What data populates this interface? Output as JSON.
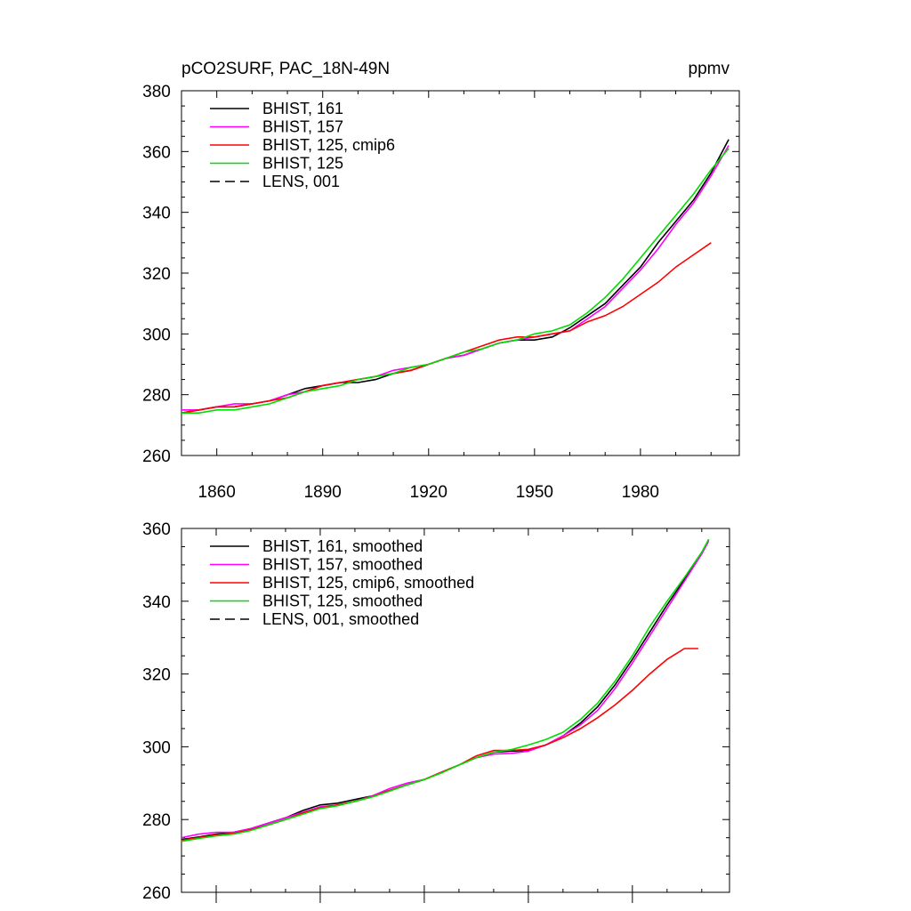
{
  "chart_data": [
    {
      "type": "line",
      "title_left": "pCO2SURF, PAC_18N-49N",
      "title_right": "ppmv",
      "xlabel": "",
      "ylabel": "",
      "xlim": [
        1850,
        2008
      ],
      "ylim": [
        260,
        380
      ],
      "xticks": [
        1860,
        1890,
        1920,
        1950,
        1980
      ],
      "yticks": [
        260,
        280,
        300,
        320,
        340,
        360,
        380
      ],
      "grid": false,
      "legend_position": "top-left",
      "series": [
        {
          "name": "BHIST, 161",
          "color": "#000000",
          "dash": "solid",
          "x": [
            1850,
            1855,
            1860,
            1865,
            1870,
            1875,
            1880,
            1885,
            1890,
            1895,
            1900,
            1905,
            1910,
            1915,
            1920,
            1925,
            1930,
            1935,
            1940,
            1945,
            1950,
            1955,
            1960,
            1965,
            1970,
            1975,
            1980,
            1985,
            1990,
            1995,
            2000,
            2005
          ],
          "y": [
            274,
            275,
            276,
            276,
            277,
            278,
            280,
            282,
            283,
            284,
            284,
            285,
            287,
            288,
            290,
            292,
            293,
            295,
            297,
            298,
            298,
            299,
            302,
            306,
            310,
            316,
            322,
            330,
            337,
            344,
            353,
            364
          ]
        },
        {
          "name": "BHIST, 157",
          "color": "#ff00ff",
          "dash": "solid",
          "x": [
            1850,
            1855,
            1860,
            1865,
            1870,
            1875,
            1880,
            1885,
            1890,
            1895,
            1900,
            1905,
            1910,
            1915,
            1920,
            1925,
            1930,
            1935,
            1940,
            1945,
            1950,
            1955,
            1960,
            1965,
            1970,
            1975,
            1980,
            1985,
            1990,
            1995,
            2000,
            2005
          ],
          "y": [
            275,
            275,
            276,
            277,
            277,
            278,
            280,
            281,
            283,
            284,
            285,
            286,
            288,
            289,
            290,
            292,
            293,
            295,
            297,
            298,
            299,
            300,
            301,
            305,
            309,
            315,
            321,
            328,
            336,
            343,
            352,
            362
          ]
        },
        {
          "name": "BHIST, 125, cmip6",
          "color": "#ff0000",
          "dash": "solid",
          "x": [
            1850,
            1855,
            1860,
            1865,
            1870,
            1875,
            1880,
            1885,
            1890,
            1895,
            1900,
            1905,
            1910,
            1915,
            1920,
            1925,
            1930,
            1935,
            1940,
            1945,
            1950,
            1955,
            1960,
            1965,
            1970,
            1975,
            1980,
            1985,
            1990,
            1995,
            2000
          ],
          "y": [
            274,
            275,
            276,
            276,
            277,
            278,
            279,
            281,
            283,
            284,
            285,
            286,
            287,
            288,
            290,
            292,
            294,
            296,
            298,
            299,
            299,
            300,
            301,
            304,
            306,
            309,
            313,
            317,
            322,
            326,
            330
          ]
        },
        {
          "name": "BHIST, 125",
          "color": "#00dd00",
          "dash": "solid",
          "x": [
            1850,
            1855,
            1860,
            1865,
            1870,
            1875,
            1880,
            1885,
            1890,
            1895,
            1900,
            1905,
            1910,
            1915,
            1920,
            1925,
            1930,
            1935,
            1940,
            1945,
            1950,
            1955,
            1960,
            1965,
            1970,
            1975,
            1980,
            1985,
            1990,
            1995,
            2000,
            2005
          ],
          "y": [
            274,
            274,
            275,
            275,
            276,
            277,
            279,
            281,
            282,
            283,
            285,
            286,
            287,
            289,
            290,
            292,
            294,
            295,
            297,
            298,
            300,
            301,
            303,
            307,
            312,
            318,
            325,
            332,
            339,
            346,
            354,
            361
          ]
        },
        {
          "name": "LENS, 001",
          "color": "#000000",
          "dash": "dashed",
          "x": [],
          "y": []
        }
      ]
    },
    {
      "type": "line",
      "xlim": [
        1850,
        2008
      ],
      "ylim": [
        260,
        360
      ],
      "yticks": [
        260,
        280,
        300,
        320,
        340,
        360
      ],
      "grid": false,
      "legend_position": "top-left",
      "series": [
        {
          "name": "BHIST, 161, smoothed",
          "color": "#000000",
          "dash": "solid",
          "x": [
            1850,
            1855,
            1860,
            1865,
            1870,
            1875,
            1880,
            1885,
            1890,
            1895,
            1900,
            1905,
            1910,
            1915,
            1920,
            1925,
            1930,
            1935,
            1940,
            1945,
            1950,
            1955,
            1960,
            1965,
            1970,
            1975,
            1980,
            1985,
            1990,
            1995,
            2000,
            2002
          ],
          "y": [
            274.5,
            275.2,
            276,
            276.5,
            277.5,
            279,
            280.5,
            282.5,
            284,
            284.5,
            285.5,
            286.5,
            288,
            289.5,
            291,
            293,
            295,
            297,
            298.5,
            298.8,
            299,
            300.5,
            303,
            306.5,
            311,
            317,
            324,
            331.5,
            339,
            346,
            353,
            357
          ]
        },
        {
          "name": "BHIST, 157, smoothed",
          "color": "#ff00ff",
          "dash": "solid",
          "x": [
            1850,
            1855,
            1860,
            1865,
            1870,
            1875,
            1880,
            1885,
            1890,
            1895,
            1900,
            1905,
            1910,
            1915,
            1920,
            1925,
            1930,
            1935,
            1940,
            1945,
            1950,
            1955,
            1960,
            1965,
            1970,
            1975,
            1980,
            1985,
            1990,
            1995,
            2000,
            2002
          ],
          "y": [
            275,
            276,
            276.5,
            276.5,
            277.5,
            279,
            280.5,
            282,
            283.5,
            284,
            285,
            286.5,
            288.5,
            290,
            291,
            293,
            295,
            297,
            298,
            298.2,
            298.8,
            300.5,
            303,
            306,
            310,
            316,
            323,
            330.5,
            338,
            345.5,
            353,
            356.5
          ]
        },
        {
          "name": "BHIST, 125, cmip6, smoothed",
          "color": "#ff0000",
          "dash": "solid",
          "x": [
            1850,
            1855,
            1860,
            1865,
            1870,
            1875,
            1880,
            1885,
            1890,
            1895,
            1900,
            1905,
            1910,
            1915,
            1920,
            1925,
            1930,
            1935,
            1940,
            1945,
            1950,
            1955,
            1960,
            1965,
            1970,
            1975,
            1980,
            1985,
            1990,
            1995,
            1999
          ],
          "y": [
            274.3,
            275,
            275.8,
            276.2,
            277.2,
            278.5,
            280,
            281.8,
            283.2,
            284,
            285,
            286.3,
            288,
            289.5,
            291,
            293,
            295,
            297.5,
            299,
            299,
            299.3,
            300.5,
            302.5,
            305,
            308,
            311.5,
            315.5,
            320,
            324,
            327,
            327
          ]
        },
        {
          "name": "BHIST, 125, smoothed",
          "color": "#00dd00",
          "dash": "solid",
          "x": [
            1850,
            1855,
            1860,
            1865,
            1870,
            1875,
            1880,
            1885,
            1890,
            1895,
            1900,
            1905,
            1910,
            1915,
            1920,
            1925,
            1930,
            1935,
            1940,
            1945,
            1950,
            1955,
            1960,
            1965,
            1970,
            1975,
            1980,
            1985,
            1990,
            1995,
            2000,
            2002
          ],
          "y": [
            274,
            274.8,
            275.5,
            276,
            277,
            278.5,
            280,
            281.5,
            283,
            283.8,
            285,
            286.2,
            287.8,
            289.5,
            291,
            292.8,
            295,
            297,
            298.5,
            299.2,
            300.5,
            302,
            304,
            307.5,
            312,
            318,
            325,
            333,
            340,
            346.5,
            353.5,
            357
          ]
        },
        {
          "name": "LENS, 001, smoothed",
          "color": "#000000",
          "dash": "dashed",
          "x": [],
          "y": []
        }
      ]
    }
  ]
}
